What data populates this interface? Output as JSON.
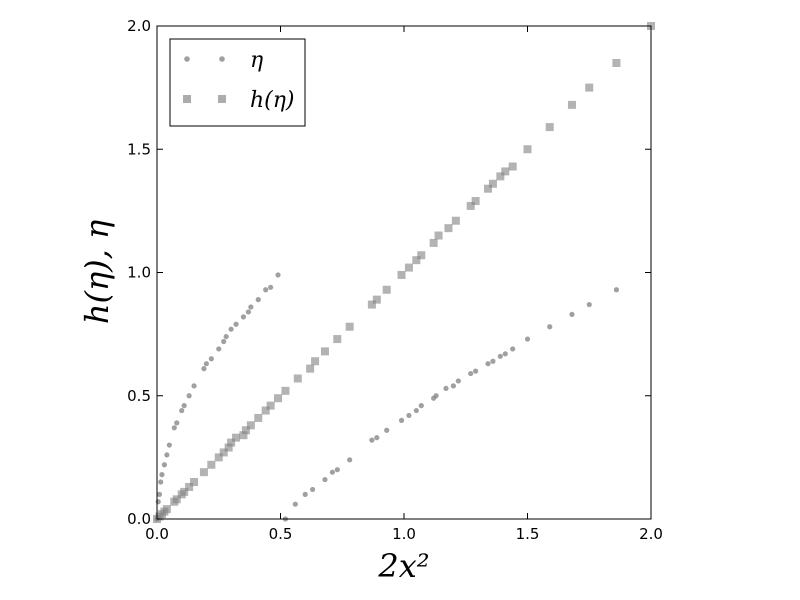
{
  "chart_data": {
    "type": "scatter",
    "xlabel": "2x²",
    "ylabel": "h(η), η",
    "xlim": [
      0.0,
      2.0
    ],
    "ylim": [
      0.0,
      2.0
    ],
    "xticks": [
      "0.0",
      "0.5",
      "1.0",
      "1.5",
      "2.0"
    ],
    "yticks": [
      "0.0",
      "0.5",
      "1.0",
      "1.5",
      "2.0"
    ],
    "grid": false,
    "legend": "top-left",
    "series": [
      {
        "name": "η",
        "marker": "circle",
        "color": "#808080",
        "branches": [
          {
            "x": [
              0.0,
              0.005,
              0.01,
              0.015,
              0.02,
              0.03,
              0.04,
              0.05,
              0.07,
              0.08,
              0.1,
              0.11,
              0.13,
              0.15,
              0.19,
              0.2,
              0.22,
              0.25,
              0.27,
              0.28,
              0.3,
              0.32,
              0.35,
              0.37,
              0.38,
              0.41,
              0.44,
              0.46,
              0.49
            ],
            "y": [
              0.0,
              0.07,
              0.1,
              0.15,
              0.18,
              0.22,
              0.26,
              0.3,
              0.37,
              0.39,
              0.44,
              0.46,
              0.5,
              0.54,
              0.61,
              0.63,
              0.65,
              0.69,
              0.72,
              0.74,
              0.77,
              0.79,
              0.82,
              0.84,
              0.86,
              0.89,
              0.93,
              0.94,
              0.99
            ]
          },
          {
            "x": [
              0.52,
              0.56,
              0.6,
              0.63,
              0.68,
              0.71,
              0.73,
              0.78,
              0.87,
              0.89,
              0.93,
              0.99,
              1.02,
              1.05,
              1.07,
              1.12,
              1.13,
              1.17,
              1.2,
              1.22,
              1.27,
              1.29,
              1.34,
              1.36,
              1.39,
              1.41,
              1.44,
              1.5,
              1.59,
              1.68,
              1.75,
              1.86
            ],
            "y": [
              0.0,
              0.06,
              0.1,
              0.12,
              0.16,
              0.19,
              0.2,
              0.24,
              0.32,
              0.33,
              0.36,
              0.4,
              0.42,
              0.44,
              0.46,
              0.49,
              0.5,
              0.53,
              0.54,
              0.56,
              0.59,
              0.6,
              0.63,
              0.64,
              0.66,
              0.67,
              0.69,
              0.73,
              0.78,
              0.83,
              0.87,
              0.93
            ]
          }
        ]
      },
      {
        "name": "h(η)",
        "marker": "square",
        "color": "#808080",
        "x": [
          0.0,
          0.01,
          0.02,
          0.03,
          0.04,
          0.07,
          0.08,
          0.1,
          0.11,
          0.13,
          0.15,
          0.19,
          0.22,
          0.25,
          0.27,
          0.29,
          0.3,
          0.32,
          0.35,
          0.36,
          0.38,
          0.41,
          0.44,
          0.46,
          0.49,
          0.52,
          0.57,
          0.62,
          0.64,
          0.68,
          0.73,
          0.78,
          0.87,
          0.89,
          0.93,
          0.99,
          1.02,
          1.05,
          1.07,
          1.12,
          1.14,
          1.18,
          1.21,
          1.27,
          1.29,
          1.34,
          1.36,
          1.39,
          1.41,
          1.44,
          1.5,
          1.59,
          1.68,
          1.75,
          1.86,
          2.0
        ],
        "y": [
          0.0,
          0.01,
          0.02,
          0.03,
          0.04,
          0.07,
          0.08,
          0.1,
          0.11,
          0.13,
          0.15,
          0.19,
          0.22,
          0.25,
          0.27,
          0.29,
          0.31,
          0.33,
          0.34,
          0.36,
          0.38,
          0.41,
          0.44,
          0.46,
          0.49,
          0.52,
          0.57,
          0.61,
          0.64,
          0.68,
          0.73,
          0.78,
          0.87,
          0.89,
          0.93,
          0.99,
          1.02,
          1.05,
          1.07,
          1.12,
          1.15,
          1.18,
          1.21,
          1.27,
          1.29,
          1.34,
          1.36,
          1.39,
          1.41,
          1.43,
          1.5,
          1.59,
          1.68,
          1.75,
          1.85,
          2.0
        ]
      }
    ]
  }
}
